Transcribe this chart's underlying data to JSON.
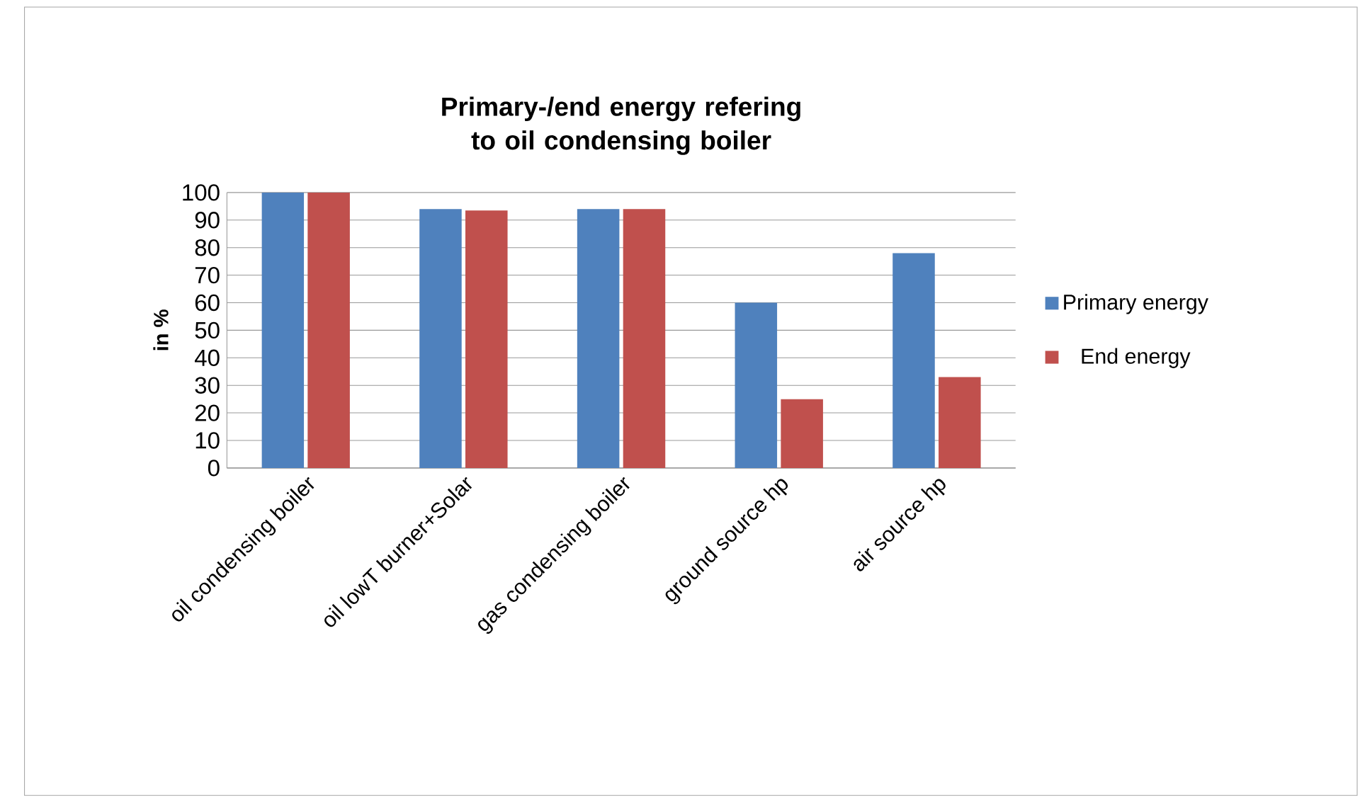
{
  "chart_data": {
    "type": "bar",
    "title": "Primary-/end energy refering to oil condensing boiler",
    "ylabel": "in %",
    "categories": [
      "oil condensing boiler",
      "oil lowT burner+Solar",
      "gas condensing boiler",
      "ground source hp",
      "air source hp"
    ],
    "series": [
      {
        "name": "Primary energy",
        "color": "#4f81bd",
        "values": [
          100,
          94,
          94,
          60,
          78
        ]
      },
      {
        "name": "End energy",
        "color": "#c0504d",
        "values": [
          100,
          93.5,
          94,
          25,
          33
        ]
      }
    ],
    "ylim": [
      0,
      100
    ],
    "yticks": [
      0,
      10,
      20,
      30,
      40,
      50,
      60,
      70,
      80,
      90,
      100
    ],
    "grid": "y",
    "legend": "right"
  }
}
